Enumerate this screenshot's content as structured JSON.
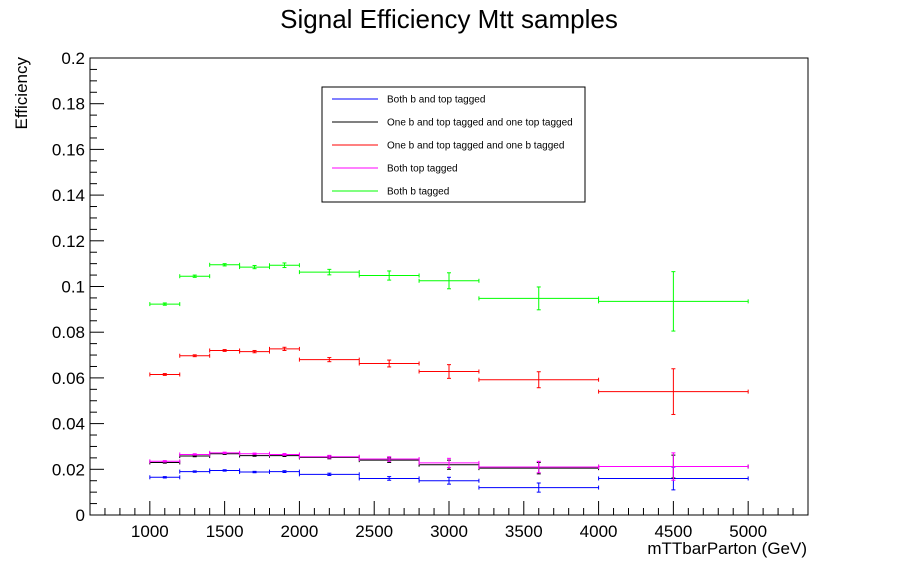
{
  "chart_data": {
    "type": "scatter",
    "title": "Signal Efficiency Mtt samples",
    "xlabel": "mTTbarParton (GeV)",
    "ylabel": "Efficiency",
    "xlim": [
      600,
      5400
    ],
    "ylim": [
      0,
      0.2
    ],
    "x_ticks": [
      1000,
      1500,
      2000,
      2500,
      3000,
      3500,
      4000,
      4500,
      5000
    ],
    "y_ticks": [
      0,
      0.02,
      0.04,
      0.06,
      0.08,
      0.1,
      0.12,
      0.14,
      0.16,
      0.18,
      0.2
    ],
    "x_tick_labels": [
      "1000",
      "1500",
      "2000",
      "2500",
      "3000",
      "3500",
      "4000",
      "4500",
      "5000"
    ],
    "y_tick_labels": [
      "0",
      "0.02",
      "0.04",
      "0.06",
      "0.08",
      "0.1",
      "0.12",
      "0.14",
      "0.16",
      "0.18",
      "0.2"
    ],
    "grid": false,
    "legend_position": "top-center",
    "x": [
      1100,
      1300,
      1500,
      1700,
      1900,
      2200,
      2600,
      3000,
      3600,
      4500
    ],
    "x_err": [
      100,
      100,
      100,
      100,
      100,
      200,
      200,
      200,
      400,
      500
    ],
    "series": [
      {
        "name": "Both b and top tagged",
        "color": "#0000ff",
        "y": [
          0.0165,
          0.019,
          0.0195,
          0.0188,
          0.019,
          0.0178,
          0.016,
          0.015,
          0.012,
          0.016
        ],
        "y_err": [
          0.0003,
          0.0003,
          0.0003,
          0.0003,
          0.0004,
          0.0005,
          0.0008,
          0.0015,
          0.002,
          0.005
        ]
      },
      {
        "name": "One b and top tagged and one top tagged",
        "color": "#000000",
        "y": [
          0.023,
          0.0258,
          0.0268,
          0.026,
          0.026,
          0.0252,
          0.024,
          0.022,
          0.0205,
          0.0212
        ],
        "y_err": [
          0.0003,
          0.0003,
          0.0003,
          0.0003,
          0.0004,
          0.0006,
          0.001,
          0.002,
          0.0025,
          0.005
        ]
      },
      {
        "name": "One b and top tagged and one b tagged",
        "color": "#ff0000",
        "y": [
          0.0615,
          0.0697,
          0.072,
          0.0715,
          0.0727,
          0.068,
          0.0663,
          0.0628,
          0.0592,
          0.054
        ],
        "y_err": [
          0.0004,
          0.0004,
          0.0004,
          0.0005,
          0.0007,
          0.0009,
          0.0015,
          0.003,
          0.0035,
          0.01
        ]
      },
      {
        "name": "Both top tagged",
        "color": "#ff00ff",
        "y": [
          0.0235,
          0.0265,
          0.0272,
          0.0268,
          0.0265,
          0.0255,
          0.0245,
          0.0228,
          0.021,
          0.0212
        ],
        "y_err": [
          0.0003,
          0.0003,
          0.0003,
          0.0003,
          0.0004,
          0.0006,
          0.001,
          0.002,
          0.0025,
          0.006
        ]
      },
      {
        "name": "Both b tagged",
        "color": "#00ff00",
        "y": [
          0.0923,
          0.1045,
          0.1095,
          0.1085,
          0.1093,
          0.1063,
          0.1048,
          0.1025,
          0.0948,
          0.0935
        ],
        "y_err": [
          0.0005,
          0.0005,
          0.0005,
          0.0007,
          0.001,
          0.0012,
          0.002,
          0.0035,
          0.005,
          0.013
        ]
      }
    ]
  }
}
